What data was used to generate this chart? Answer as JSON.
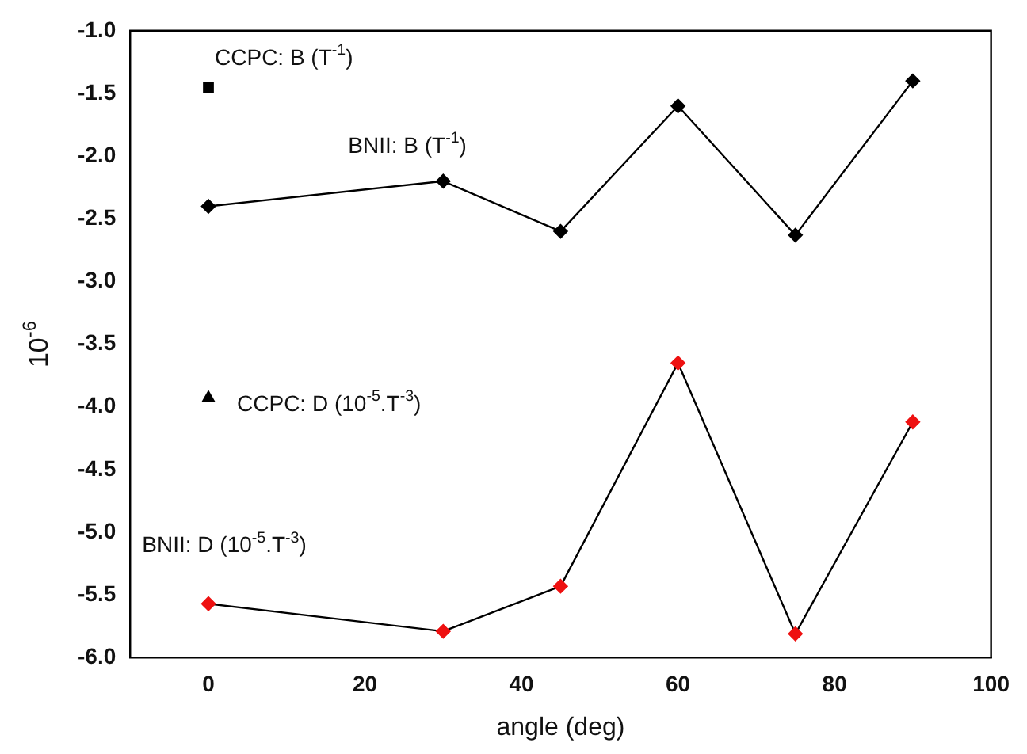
{
  "chart_data": {
    "type": "line",
    "xlabel": "angle (deg)",
    "ylabel": "10$^{-6}$",
    "x": [
      0,
      30,
      45,
      60,
      75,
      90
    ],
    "series": [
      {
        "name": "CCPC: B (T$^{-1}$)",
        "type": "scatter",
        "marker": "square",
        "color": "#000000",
        "x": [
          0
        ],
        "values": [
          -1.45
        ]
      },
      {
        "name": "BNII: B (T$^{-1}$)",
        "type": "line",
        "marker": "diamond",
        "color": "#000000",
        "values": [
          -2.4,
          -2.2,
          -2.6,
          -1.6,
          -2.63,
          -1.4
        ]
      },
      {
        "name": "CCPC: D (10$^{-5}$.T$^{-3}$)",
        "type": "scatter",
        "marker": "triangle",
        "color": "#000000",
        "x": [
          0
        ],
        "values": [
          -3.93
        ]
      },
      {
        "name": "BNII: D (10$^{-5}$.T$^{-3}$)",
        "type": "line",
        "marker": "diamond",
        "color": "#ee1111",
        "values": [
          -5.57,
          -5.79,
          -5.43,
          -3.65,
          -5.81,
          -4.12
        ]
      }
    ],
    "xlim": [
      -10,
      100
    ],
    "xticks": [
      0,
      20,
      40,
      60,
      80,
      100
    ],
    "ylim": [
      -6,
      -1
    ],
    "yticks": [
      {
        "value": -6,
        "label": "-6.0"
      },
      {
        "value": -5.5,
        "label": "-5.5"
      },
      {
        "value": -5,
        "label": "-5.0"
      },
      {
        "value": -4.5,
        "label": "-4.5"
      },
      {
        "value": -4,
        "label": "-4.0"
      },
      {
        "value": -3.5,
        "label": "-3.5"
      },
      {
        "value": -3,
        "label": "-3.0"
      },
      {
        "value": -2.5,
        "label": "-2.5"
      },
      {
        "value": -2,
        "label": "-2.0"
      },
      {
        "value": -1.5,
        "label": "-1.5"
      },
      {
        "value": -1,
        "label": "-1.0"
      }
    ],
    "grid": false,
    "legend": false
  }
}
